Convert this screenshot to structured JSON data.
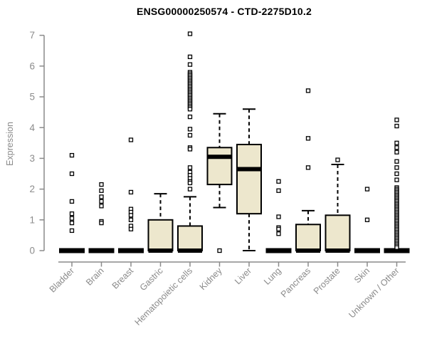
{
  "page": {
    "title": "ENSG00000250574 - CTD-2275D10.2"
  },
  "chart_data": {
    "type": "box",
    "title": "ENSG00000250574 - CTD-2275D10.2",
    "ylabel": "Expression",
    "xlabel": "",
    "ylim": [
      0,
      7
    ],
    "yticks": [
      "0",
      "1",
      "2",
      "3",
      "4",
      "5",
      "6",
      "7"
    ],
    "grid": false,
    "legend_position": "none",
    "categories": [
      "Bladder",
      "Brain",
      "Breast",
      "Gastric",
      "Hematopoietic cells",
      "Kidney",
      "Liver",
      "Lung",
      "Pancreas",
      "Prostate",
      "Skin",
      "Unknown / Other"
    ],
    "boxes": [
      {
        "category": "Bladder",
        "median": 0,
        "q1": 0,
        "q3": 0,
        "whisker_low": 0,
        "whisker_high": 0,
        "outliers": [
          3.1,
          2.5,
          1.6,
          1.2,
          1.05,
          0.9,
          0.65
        ]
      },
      {
        "category": "Brain",
        "median": 0,
        "q1": 0,
        "q3": 0,
        "whisker_low": 0,
        "whisker_high": 0,
        "outliers": [
          2.15,
          1.95,
          1.75,
          1.6,
          1.45,
          0.95,
          0.9
        ]
      },
      {
        "category": "Breast",
        "median": 0,
        "q1": 0,
        "q3": 0,
        "whisker_low": 0,
        "whisker_high": 0,
        "outliers": [
          3.6,
          1.9,
          1.35,
          1.25,
          1.15,
          1.0,
          0.8,
          0.7
        ]
      },
      {
        "category": "Gastric",
        "median": 0,
        "q1": 0,
        "q3": 1.0,
        "whisker_low": 0,
        "whisker_high": 1.85,
        "outliers": []
      },
      {
        "category": "Hematopoietic cells",
        "median": 0,
        "q1": 0,
        "q3": 0.8,
        "whisker_low": 0,
        "whisker_high": 1.75,
        "outliers": [
          7.05,
          6.3,
          6.05,
          5.8,
          5.75,
          5.7,
          5.65,
          5.6,
          5.55,
          5.5,
          5.45,
          5.4,
          5.35,
          5.3,
          5.25,
          5.2,
          5.15,
          5.1,
          5.05,
          5.0,
          4.95,
          4.9,
          4.85,
          4.8,
          4.75,
          4.7,
          4.65,
          4.6,
          4.35,
          3.95,
          3.75,
          3.35,
          3.3,
          2.7,
          2.55,
          2.45,
          2.35,
          2.25,
          2.2,
          2.0
        ]
      },
      {
        "category": "Kidney",
        "median": 3.05,
        "q1": 2.15,
        "q3": 3.35,
        "whisker_low": 1.4,
        "whisker_high": 4.45,
        "outliers": [
          0
        ]
      },
      {
        "category": "Liver",
        "median": 2.65,
        "q1": 1.2,
        "q3": 3.45,
        "whisker_low": 0,
        "whisker_high": 4.6,
        "outliers": []
      },
      {
        "category": "Lung",
        "median": 0,
        "q1": 0,
        "q3": 0,
        "whisker_low": 0,
        "whisker_high": 0,
        "outliers": [
          2.25,
          1.95,
          1.1,
          0.75,
          0.7,
          0.55
        ]
      },
      {
        "category": "Pancreas",
        "median": 0,
        "q1": 0,
        "q3": 0.85,
        "whisker_low": 0,
        "whisker_high": 1.3,
        "outliers": [
          5.2,
          3.65,
          2.7
        ]
      },
      {
        "category": "Prostate",
        "median": 0,
        "q1": 0,
        "q3": 1.15,
        "whisker_low": 0,
        "whisker_high": 2.8,
        "outliers": [
          2.95
        ]
      },
      {
        "category": "Skin",
        "median": 0,
        "q1": 0,
        "q3": 0,
        "whisker_low": 0,
        "whisker_high": 0,
        "outliers": [
          2.0,
          1.0
        ]
      },
      {
        "category": "Unknown / Other",
        "median": 0,
        "q1": 0,
        "q3": 0,
        "whisker_low": 0,
        "whisker_high": 0,
        "outliers": [
          4.25,
          4.05,
          3.5,
          3.35,
          3.2,
          2.9,
          2.7,
          2.5,
          2.3,
          2.05,
          2.0,
          1.95,
          1.9,
          1.85,
          1.8,
          1.75,
          1.7,
          1.65,
          1.6,
          1.55,
          1.5,
          1.45,
          1.4,
          1.35,
          1.3,
          1.25,
          1.2,
          1.15,
          1.1,
          1.05,
          1.0,
          0.95,
          0.9,
          0.85,
          0.8,
          0.75,
          0.7,
          0.65,
          0.6,
          0.55,
          0.5,
          0.45,
          0.4,
          0.35,
          0.3,
          0.25,
          0.2,
          0.15,
          0.1
        ]
      }
    ],
    "style": {
      "box_fill": "#ede7cd",
      "box_border": "#000000",
      "median_color": "#000000",
      "whisker_style": "dashed",
      "outlier_marker": "open-square",
      "axis_color": "#8a8a8a",
      "axis_text_color": "#8a8a8a",
      "title_color": "#000000",
      "background": "#ffffff"
    }
  }
}
